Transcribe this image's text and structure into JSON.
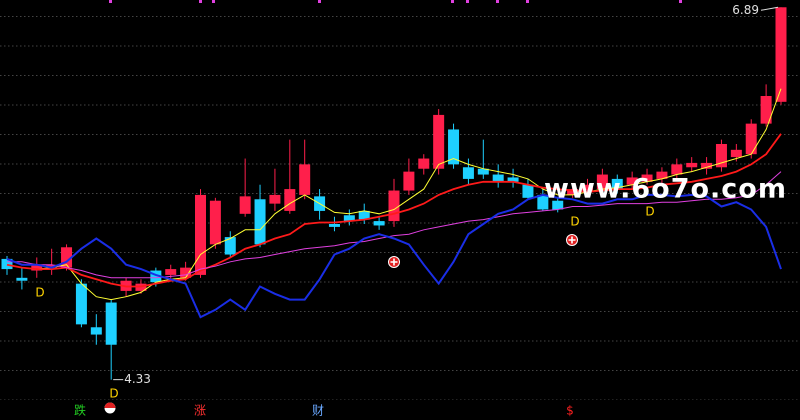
{
  "chart_data": {
    "type": "candlestick",
    "up_color": "#ff1f4b",
    "down_color": "#1ed0ff",
    "ylim": [
      4.19,
      6.94
    ],
    "open": [
      5.16,
      5.03,
      5.08,
      5.1,
      5.1,
      4.99,
      4.69,
      4.86,
      4.94,
      4.94,
      5.08,
      5.05,
      5.03,
      5.05,
      5.26,
      5.31,
      5.47,
      5.57,
      5.54,
      5.49,
      5.6,
      5.59,
      5.4,
      5.46,
      5.49,
      5.42,
      5.42,
      5.63,
      5.78,
      5.78,
      6.05,
      5.79,
      5.78,
      5.74,
      5.72,
      5.67,
      5.6,
      5.56,
      5.6,
      5.63,
      5.64,
      5.71,
      5.67,
      5.69,
      5.71,
      5.74,
      5.79,
      5.78,
      5.79,
      5.86,
      5.88,
      6.09,
      6.24
    ],
    "high": [
      5.18,
      5.1,
      5.17,
      5.23,
      5.26,
      5.02,
      4.78,
      4.88,
      5.03,
      5.02,
      5.1,
      5.12,
      5.14,
      5.64,
      5.58,
      5.35,
      5.85,
      5.67,
      5.78,
      5.98,
      5.98,
      5.64,
      5.45,
      5.5,
      5.54,
      5.45,
      5.71,
      5.85,
      5.88,
      6.19,
      6.09,
      5.85,
      5.98,
      5.81,
      5.78,
      5.71,
      5.65,
      5.58,
      5.67,
      5.71,
      5.78,
      5.74,
      5.76,
      5.78,
      5.79,
      5.85,
      5.86,
      5.86,
      5.98,
      5.95,
      6.12,
      6.36,
      6.89
    ],
    "low": [
      5.05,
      4.95,
      5.03,
      5.05,
      5.08,
      4.69,
      4.57,
      4.33,
      4.9,
      4.92,
      4.97,
      5.02,
      5.01,
      5.03,
      5.23,
      5.17,
      5.45,
      5.24,
      5.49,
      5.47,
      5.57,
      5.43,
      5.35,
      5.39,
      5.4,
      5.36,
      5.38,
      5.6,
      5.74,
      5.74,
      5.78,
      5.67,
      5.71,
      5.65,
      5.65,
      5.57,
      5.49,
      5.48,
      5.58,
      5.6,
      5.6,
      5.61,
      5.64,
      5.67,
      5.68,
      5.71,
      5.76,
      5.74,
      5.76,
      5.83,
      5.85,
      6.07,
      6.22
    ],
    "close": [
      5.09,
      5.01,
      5.12,
      5.12,
      5.24,
      4.71,
      4.64,
      4.57,
      5.01,
      4.99,
      5.0,
      5.09,
      5.1,
      5.6,
      5.56,
      5.19,
      5.59,
      5.26,
      5.6,
      5.64,
      5.81,
      5.49,
      5.38,
      5.42,
      5.43,
      5.39,
      5.63,
      5.76,
      5.85,
      6.15,
      5.81,
      5.71,
      5.74,
      5.69,
      5.69,
      5.58,
      5.5,
      5.5,
      5.64,
      5.67,
      5.74,
      5.64,
      5.72,
      5.74,
      5.76,
      5.81,
      5.82,
      5.82,
      5.95,
      5.91,
      6.09,
      6.28,
      6.89
    ],
    "lines": [
      {
        "color": "#ffff33",
        "values": [
          5.12,
          5.1,
          5.09,
          5.1,
          5.12,
          4.99,
          4.9,
          4.88,
          4.9,
          4.93,
          5.0,
          5.02,
          5.03,
          5.19,
          5.26,
          5.3,
          5.36,
          5.36,
          5.47,
          5.54,
          5.6,
          5.54,
          5.48,
          5.47,
          5.49,
          5.47,
          5.5,
          5.57,
          5.64,
          5.81,
          5.85,
          5.81,
          5.78,
          5.76,
          5.74,
          5.71,
          5.64,
          5.6,
          5.6,
          5.62,
          5.64,
          5.65,
          5.67,
          5.69,
          5.71,
          5.74,
          5.76,
          5.79,
          5.82,
          5.85,
          5.88,
          6.05,
          6.33
        ]
      },
      {
        "color": "#ff1a1a",
        "values": [
          5.12,
          5.1,
          5.09,
          5.09,
          5.1,
          5.05,
          5.02,
          4.99,
          4.97,
          4.97,
          4.99,
          5.01,
          5.02,
          5.08,
          5.12,
          5.17,
          5.23,
          5.26,
          5.3,
          5.33,
          5.4,
          5.41,
          5.41,
          5.42,
          5.43,
          5.45,
          5.47,
          5.5,
          5.54,
          5.6,
          5.64,
          5.67,
          5.69,
          5.69,
          5.69,
          5.67,
          5.65,
          5.64,
          5.63,
          5.62,
          5.63,
          5.64,
          5.64,
          5.65,
          5.67,
          5.68,
          5.69,
          5.71,
          5.73,
          5.76,
          5.81,
          5.88,
          6.02
        ]
      },
      {
        "color": "#e040e0",
        "values": [
          5.14,
          5.14,
          5.12,
          5.12,
          5.1,
          5.08,
          5.05,
          5.03,
          5.03,
          5.03,
          5.03,
          5.04,
          5.05,
          5.09,
          5.11,
          5.14,
          5.16,
          5.17,
          5.19,
          5.21,
          5.23,
          5.24,
          5.25,
          5.27,
          5.28,
          5.3,
          5.32,
          5.33,
          5.36,
          5.38,
          5.4,
          5.42,
          5.43,
          5.45,
          5.47,
          5.48,
          5.49,
          5.5,
          5.52,
          5.52,
          5.53,
          5.54,
          5.54,
          5.54,
          5.55,
          5.55,
          5.56,
          5.57,
          5.57,
          5.58,
          5.6,
          5.67,
          5.76
        ]
      },
      {
        "color": "#1a2ee6",
        "values": [
          5.16,
          5.12,
          5.12,
          5.1,
          5.14,
          5.23,
          5.3,
          5.23,
          5.12,
          5.09,
          5.05,
          5.02,
          4.99,
          4.76,
          4.81,
          4.88,
          4.81,
          4.97,
          4.92,
          4.88,
          4.88,
          5.02,
          5.19,
          5.23,
          5.3,
          5.33,
          5.3,
          5.26,
          5.12,
          4.99,
          5.14,
          5.33,
          5.4,
          5.47,
          5.5,
          5.57,
          5.6,
          5.58,
          5.57,
          5.54,
          5.54,
          5.57,
          5.57,
          5.6,
          5.6,
          5.59,
          5.6,
          5.59,
          5.52,
          5.55,
          5.5,
          5.38,
          5.09
        ]
      }
    ],
    "annotations": [
      "D",
      "D",
      "D",
      "D"
    ],
    "watermark": "www.6o7o.com",
    "bottom_labels": [
      {
        "text": "跌",
        "color": "#22cc22"
      },
      {
        "text": "涨",
        "color": "#ff3030"
      },
      {
        "text": "财",
        "color": "#6aa8ff"
      },
      {
        "text": "$",
        "color": "#ff2020"
      }
    ]
  }
}
